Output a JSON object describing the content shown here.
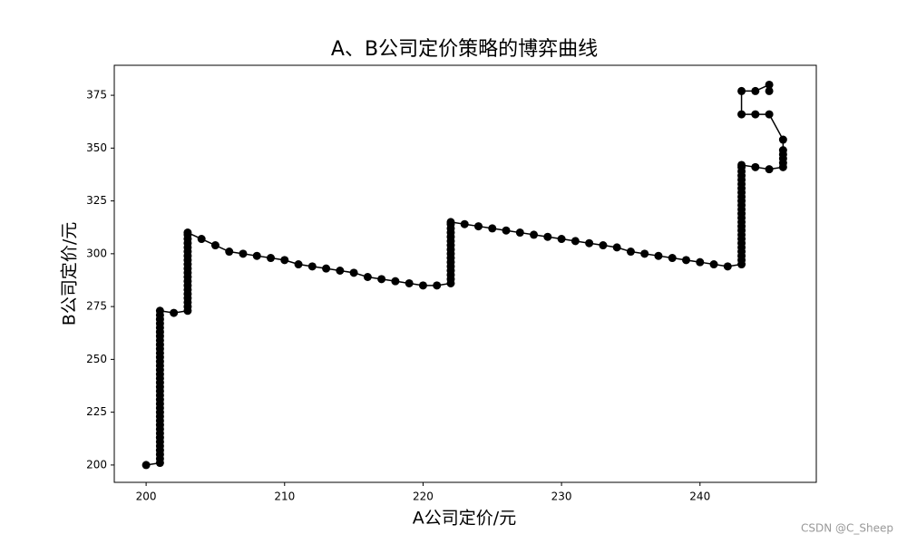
{
  "chart_data": {
    "type": "line",
    "title": "A、B公司定价策略的博弈曲线",
    "x_label": "A公司定价/元",
    "y_label": "B公司定价/元",
    "color": "#000000",
    "marker": "circle",
    "x": [
      200,
      201,
      201,
      201,
      201,
      201,
      201,
      201,
      201,
      201,
      201,
      201,
      201,
      201,
      201,
      201,
      201,
      201,
      201,
      201,
      201,
      201,
      201,
      201,
      201,
      201,
      201,
      201,
      201,
      201,
      201,
      201,
      201,
      201,
      201,
      201,
      201,
      201,
      202,
      203,
      203,
      203,
      203,
      203,
      203,
      203,
      203,
      203,
      203,
      203,
      203,
      203,
      203,
      203,
      203,
      203,
      203,
      203,
      203,
      204,
      205,
      206,
      207,
      208,
      209,
      210,
      211,
      212,
      213,
      214,
      215,
      216,
      217,
      218,
      219,
      220,
      221,
      222,
      222,
      222,
      222,
      222,
      222,
      222,
      222,
      222,
      222,
      222,
      222,
      222,
      222,
      222,
      222,
      223,
      224,
      225,
      226,
      227,
      228,
      229,
      230,
      231,
      232,
      233,
      234,
      235,
      236,
      237,
      238,
      239,
      240,
      241,
      242,
      243,
      243,
      243,
      243,
      243,
      243,
      243,
      243,
      243,
      243,
      243,
      243,
      243,
      243,
      243,
      243,
      243,
      243,
      243,
      243,
      243,
      243,
      243,
      243,
      243,
      244,
      245,
      246,
      246,
      246,
      246,
      246,
      246,
      245,
      244,
      243,
      243,
      244,
      245,
      245
    ],
    "values": [
      200,
      201,
      203,
      205,
      207,
      209,
      211,
      213,
      215,
      217,
      219,
      221,
      223,
      225,
      227,
      229,
      231,
      233,
      235,
      237,
      239,
      241,
      243,
      245,
      247,
      249,
      251,
      253,
      255,
      257,
      259,
      261,
      263,
      265,
      267,
      269,
      271,
      273,
      272,
      273,
      275,
      277,
      279,
      281,
      283,
      285,
      287,
      289,
      291,
      293,
      295,
      297,
      299,
      301,
      303,
      305,
      307,
      309,
      310,
      307,
      304,
      301,
      300,
      299,
      298,
      297,
      295,
      294,
      293,
      292,
      291,
      289,
      288,
      287,
      286,
      285,
      285,
      286,
      288,
      290,
      292,
      294,
      296,
      298,
      300,
      302,
      304,
      306,
      308,
      310,
      312,
      314,
      315,
      314,
      313,
      312,
      311,
      310,
      309,
      308,
      307,
      306,
      305,
      304,
      303,
      301,
      300,
      299,
      298,
      297,
      296,
      295,
      294,
      295,
      297,
      299,
      301,
      303,
      305,
      307,
      309,
      311,
      313,
      315,
      317,
      319,
      321,
      323,
      325,
      327,
      329,
      331,
      333,
      335,
      337,
      339,
      341,
      342,
      341,
      340,
      341,
      343,
      345,
      347,
      349,
      354,
      366,
      366,
      366,
      377,
      377,
      380,
      377
    ],
    "xlim": [
      197.7,
      248.4
    ],
    "ylim": [
      191.8,
      389.2
    ],
    "xticks": [
      200,
      210,
      220,
      230,
      240
    ],
    "yticks": [
      200,
      225,
      250,
      275,
      300,
      325,
      350,
      375
    ]
  },
  "watermark": "CSDN @C_Sheep"
}
